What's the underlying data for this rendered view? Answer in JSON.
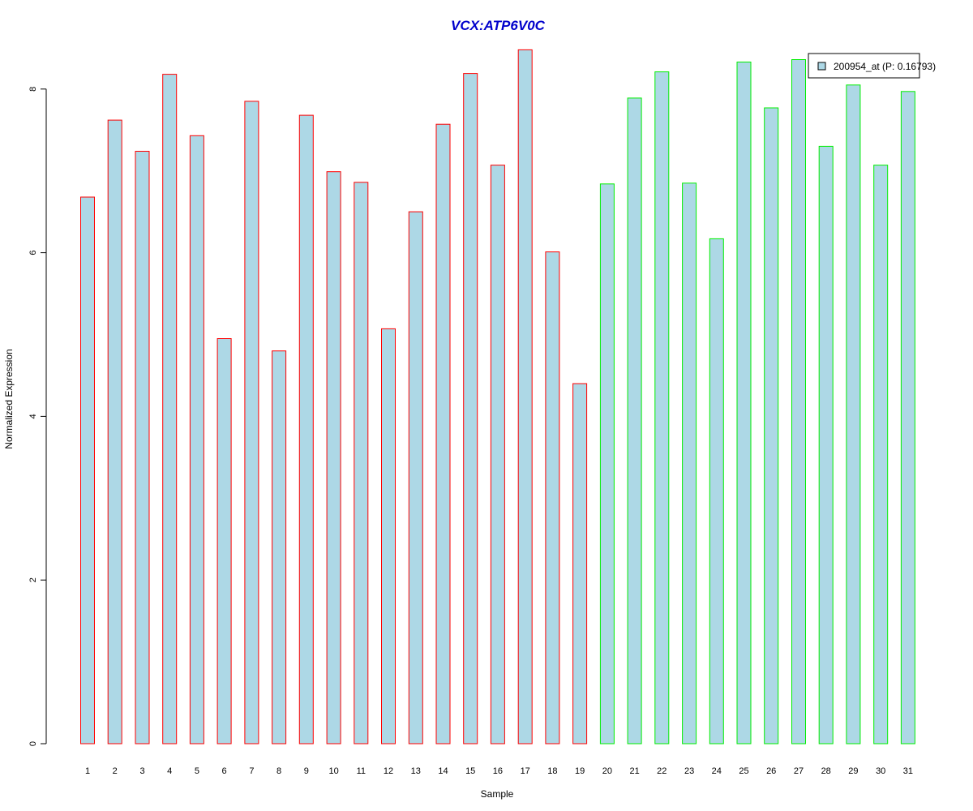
{
  "chart_data": {
    "type": "bar",
    "title": "VCX:ATP6V0C",
    "xlabel": "Sample",
    "ylabel": "Normalized Expression",
    "ylim": [
      0,
      8.5
    ],
    "yticks": [
      "0",
      "2",
      "4",
      "6",
      "8"
    ],
    "categories": [
      "1",
      "2",
      "3",
      "4",
      "5",
      "6",
      "7",
      "8",
      "9",
      "10",
      "11",
      "12",
      "13",
      "14",
      "15",
      "16",
      "17",
      "18",
      "19",
      "20",
      "21",
      "22",
      "23",
      "24",
      "25",
      "26",
      "27",
      "28",
      "29",
      "30",
      "31"
    ],
    "series": [
      {
        "name": "200954_at (P: 0.16793)",
        "values": [
          6.68,
          7.62,
          7.24,
          8.18,
          7.43,
          4.95,
          7.85,
          4.8,
          7.68,
          6.99,
          6.86,
          5.07,
          6.5,
          7.57,
          8.19,
          7.07,
          8.48,
          6.01,
          4.4,
          6.84,
          7.89,
          8.21,
          6.85,
          6.17,
          8.33,
          7.77,
          8.36,
          7.3,
          8.05,
          7.07,
          7.97
        ]
      }
    ],
    "groups": [
      6,
      6,
      6,
      6,
      6,
      6,
      6,
      6,
      6,
      6,
      6,
      6,
      6,
      6,
      6,
      6,
      6,
      6,
      6,
      2,
      2,
      2,
      2,
      2,
      2,
      2,
      2,
      2,
      2,
      2,
      2
    ],
    "legend_position": "top-right",
    "grid": false,
    "colors": {
      "bar_fill": "#add8e6",
      "group_1_border": "#ff0000",
      "group_2_border": "#00ee00",
      "title": "#0000cc"
    }
  }
}
